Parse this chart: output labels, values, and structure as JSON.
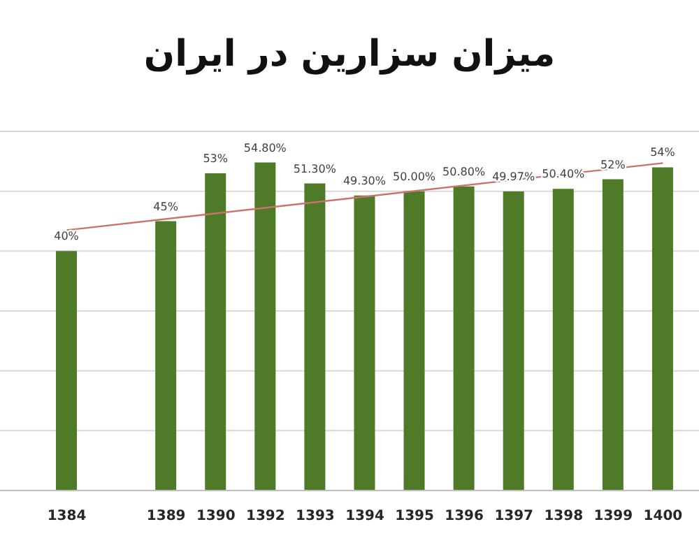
{
  "chart_data": {
    "type": "bar",
    "title": "میزان سزارین در ایران",
    "categories": [
      "1384",
      null,
      "1389",
      "1390",
      "1392",
      "1393",
      "1394",
      "1395",
      "1396",
      "1397",
      "1398",
      "1399",
      "1400"
    ],
    "series": [
      {
        "color": "#4f7a28",
        "values": [
          40,
          null,
          45,
          53,
          54.8,
          51.3,
          49.3,
          50,
          50.8,
          49.97,
          50.4,
          52,
          54
        ],
        "value_labels": [
          "40%",
          null,
          "45%",
          "53%",
          "54.80%",
          "51.30%",
          "49.30%",
          "50.00%",
          "50.80%",
          "49.97%",
          "50.40%",
          "52%",
          "54%"
        ]
      },
      {
        "type": "line",
        "color": "#c9746a",
        "marker": "none",
        "values": [
          43.5,
          null,
          null,
          null,
          null,
          null,
          null,
          null,
          null,
          null,
          null,
          null,
          54.7
        ]
      }
    ],
    "grid": "y",
    "tick_labels": "x"
  }
}
